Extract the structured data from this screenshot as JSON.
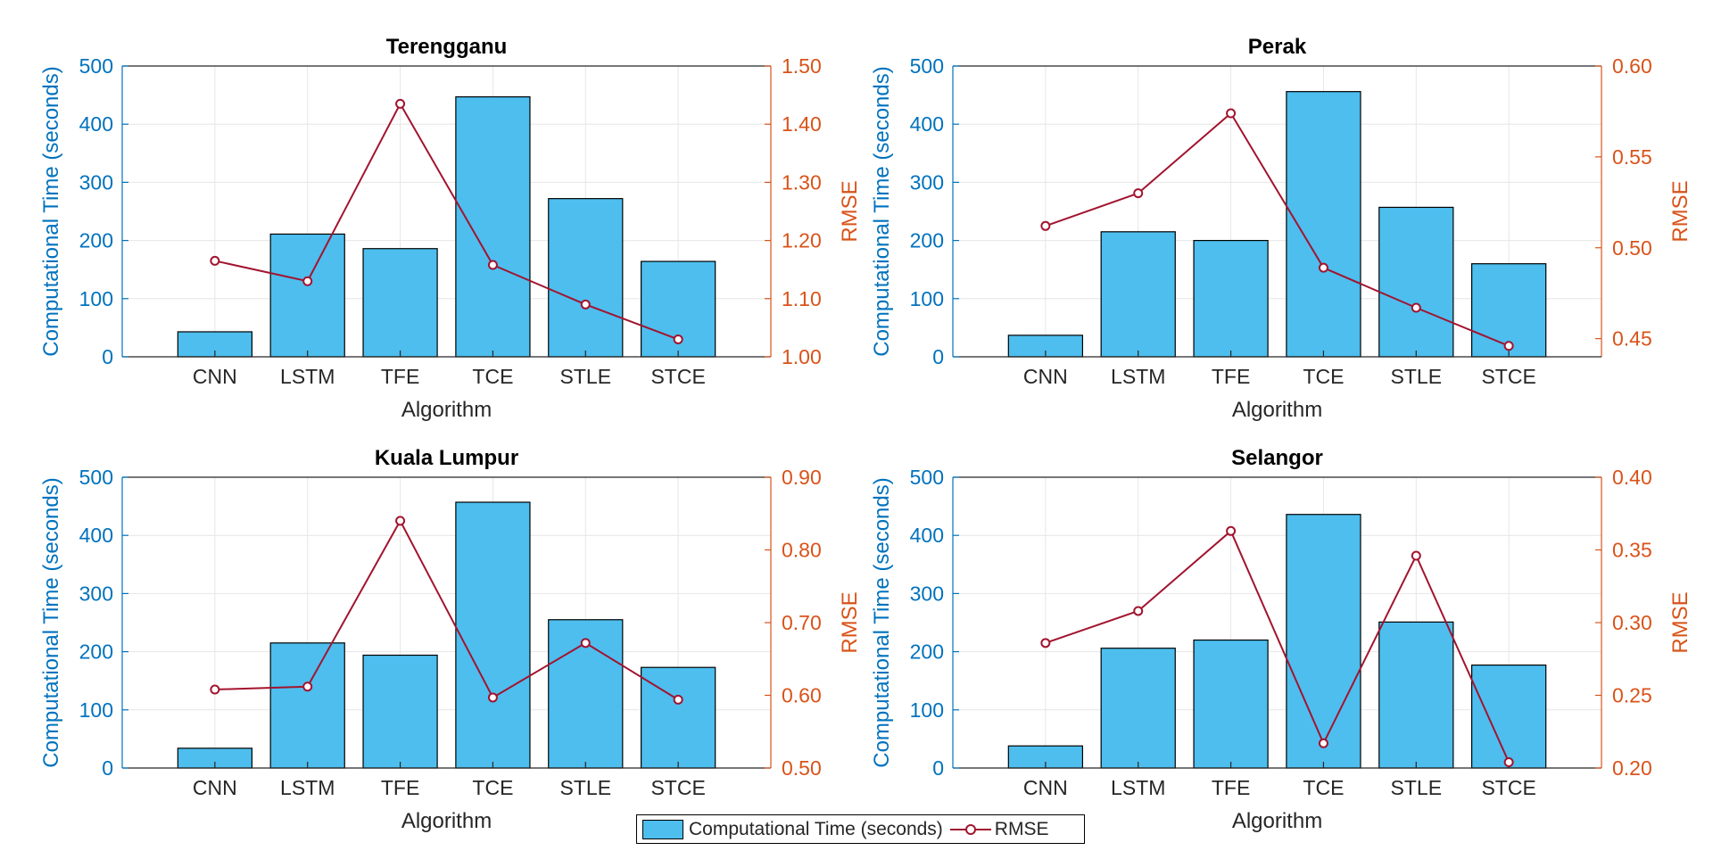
{
  "colors": {
    "bar_fill": "#4dbeee",
    "left_axis": "#0072bd",
    "right_axis": "#d95319",
    "line": "#a2142f",
    "grid": "#e6e6e6",
    "text": "#262626"
  },
  "legend": {
    "bar_label": "Computational Time (seconds)",
    "line_label": "RMSE"
  },
  "chart_data": [
    {
      "type": "bar",
      "title": "Terengganu",
      "xlabel": "Algorithm",
      "ylabel": "Computational Time (seconds)",
      "y2label": "RMSE",
      "categories": [
        "CNN",
        "LSTM",
        "TFE",
        "TCE",
        "STLE",
        "STCE"
      ],
      "ylim": [
        0,
        500
      ],
      "yticks": [
        "0",
        "100",
        "200",
        "300",
        "400",
        "500"
      ],
      "y2lim": [
        1.0,
        1.5
      ],
      "y2ticks": [
        "1.00",
        "1.10",
        "1.20",
        "1.30",
        "1.40",
        "1.50"
      ],
      "grid": true,
      "series": [
        {
          "name": "Computational Time (seconds)",
          "type": "bar",
          "axis": "left",
          "values": [
            43,
            211,
            186,
            447,
            272,
            164
          ]
        },
        {
          "name": "RMSE",
          "type": "line",
          "axis": "right",
          "values": [
            1.165,
            1.13,
            1.435,
            1.158,
            1.09,
            1.03
          ]
        }
      ]
    },
    {
      "type": "bar",
      "title": "Perak",
      "xlabel": "Algorithm",
      "ylabel": "Computational Time (seconds)",
      "y2label": "RMSE",
      "categories": [
        "CNN",
        "LSTM",
        "TFE",
        "TCE",
        "STLE",
        "STCE"
      ],
      "ylim": [
        0,
        500
      ],
      "yticks": [
        "0",
        "100",
        "200",
        "300",
        "400",
        "500"
      ],
      "y2lim": [
        0.44,
        0.6
      ],
      "y2ticks": [
        "0.45",
        "0.50",
        "0.55",
        "0.60"
      ],
      "grid": true,
      "series": [
        {
          "name": "Computational Time (seconds)",
          "type": "bar",
          "axis": "left",
          "values": [
            37,
            215,
            200,
            456,
            257,
            160
          ]
        },
        {
          "name": "RMSE",
          "type": "line",
          "axis": "right",
          "values": [
            0.512,
            0.53,
            0.574,
            0.489,
            0.467,
            0.446
          ]
        }
      ]
    },
    {
      "type": "bar",
      "title": "Kuala Lumpur",
      "xlabel": "Algorithm",
      "ylabel": "Computational Time (seconds)",
      "y2label": "RMSE",
      "categories": [
        "CNN",
        "LSTM",
        "TFE",
        "TCE",
        "STLE",
        "STCE"
      ],
      "ylim": [
        0,
        500
      ],
      "yticks": [
        "0",
        "100",
        "200",
        "300",
        "400",
        "500"
      ],
      "y2lim": [
        0.5,
        0.9
      ],
      "y2ticks": [
        "0.50",
        "0.60",
        "0.70",
        "0.80",
        "0.90"
      ],
      "grid": true,
      "series": [
        {
          "name": "Computational Time (seconds)",
          "type": "bar",
          "axis": "left",
          "values": [
            34,
            215,
            194,
            457,
            255,
            173
          ]
        },
        {
          "name": "RMSE",
          "type": "line",
          "axis": "right",
          "values": [
            0.608,
            0.612,
            0.84,
            0.597,
            0.672,
            0.594
          ]
        }
      ]
    },
    {
      "type": "bar",
      "title": "Selangor",
      "xlabel": "Algorithm",
      "ylabel": "Computational Time (seconds)",
      "y2label": "RMSE",
      "categories": [
        "CNN",
        "LSTM",
        "TFE",
        "TCE",
        "STLE",
        "STCE"
      ],
      "ylim": [
        0,
        500
      ],
      "yticks": [
        "0",
        "100",
        "200",
        "300",
        "400",
        "500"
      ],
      "y2lim": [
        0.2,
        0.4
      ],
      "y2ticks": [
        "0.20",
        "0.25",
        "0.30",
        "0.35",
        "0.40"
      ],
      "grid": true,
      "series": [
        {
          "name": "Computational Time (seconds)",
          "type": "bar",
          "axis": "left",
          "values": [
            38,
            206,
            220,
            436,
            251,
            177
          ]
        },
        {
          "name": "RMSE",
          "type": "line",
          "axis": "right",
          "values": [
            0.286,
            0.308,
            0.363,
            0.217,
            0.346,
            0.204
          ]
        }
      ]
    }
  ]
}
